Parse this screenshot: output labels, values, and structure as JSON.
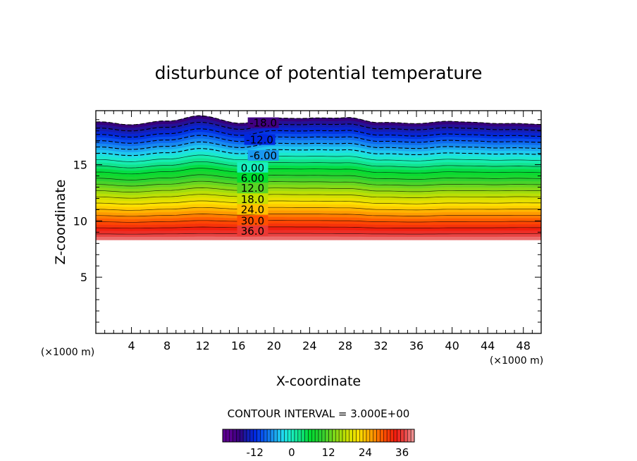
{
  "chart_data": {
    "type": "contour",
    "title": "disturbunce of potential temperature",
    "xlabel": "X-coordinate",
    "ylabel": "Z-coordinate",
    "x_unit": "(×1000 m)",
    "y_unit": "(×1000 m)",
    "xlim": [
      0,
      50
    ],
    "ylim": [
      0,
      19.8
    ],
    "x_ticks": [
      4,
      8,
      12,
      16,
      20,
      24,
      28,
      32,
      36,
      40,
      44,
      48
    ],
    "y_ticks": [
      5,
      10,
      15
    ],
    "contour_interval_label": "CONTOUR INTERVAL = 3.000E+00",
    "contour_interval": 3,
    "negative_contours": "dashed",
    "data_range": [
      -18,
      39
    ],
    "field_top_profile": {
      "x": [
        0,
        4,
        8,
        12,
        16,
        20,
        24,
        28,
        32,
        36,
        40,
        44,
        48,
        50
      ],
      "z": [
        18.6,
        18.2,
        18.6,
        19.3,
        18.9,
        19.5,
        19.4,
        19.2,
        18.5,
        18.3,
        18.6,
        18.7,
        18.9,
        18.9
      ]
    },
    "field_bottom_z": 8.3,
    "contour_labels": [
      {
        "text": "-18.0",
        "level": -18,
        "x": 18.8,
        "z": 18.7
      },
      {
        "text": "-12.0",
        "level": -12,
        "x": 18.4,
        "z": 17.2
      },
      {
        "text": "-6.00",
        "level": -6,
        "x": 18.8,
        "z": 15.8
      },
      {
        "text": "0.00",
        "level": 0,
        "x": 17.6,
        "z": 14.7
      },
      {
        "text": "6.00",
        "level": 6,
        "x": 17.6,
        "z": 13.8
      },
      {
        "text": "12.0",
        "level": 12,
        "x": 17.6,
        "z": 12.9
      },
      {
        "text": "18.0",
        "level": 18,
        "x": 17.6,
        "z": 11.9
      },
      {
        "text": "24.0",
        "level": 24,
        "x": 17.6,
        "z": 11.0
      },
      {
        "text": "30.0",
        "level": 30,
        "x": 17.6,
        "z": 10.0
      },
      {
        "text": "36.0",
        "level": 36,
        "x": 17.6,
        "z": 9.1
      }
    ],
    "colorbar_ticks": [
      "-12",
      "0",
      "12",
      "24",
      "36"
    ],
    "colorbar_tick_values": [
      -12,
      0,
      12,
      24,
      36
    ],
    "colorbar_range": [
      -22.5,
      40
    ],
    "color_stops": [
      {
        "v": -20,
        "c": "#5a0090"
      },
      {
        "v": -17,
        "c": "#34007a"
      },
      {
        "v": -15,
        "c": "#1a1aa8"
      },
      {
        "v": -12,
        "c": "#0028e0"
      },
      {
        "v": -9,
        "c": "#0a5cf0"
      },
      {
        "v": -6,
        "c": "#1a98f0"
      },
      {
        "v": -3,
        "c": "#20d8f0"
      },
      {
        "v": 0,
        "c": "#18f0c0"
      },
      {
        "v": 3,
        "c": "#10e080"
      },
      {
        "v": 6,
        "c": "#00dc30"
      },
      {
        "v": 10,
        "c": "#30d030"
      },
      {
        "v": 14,
        "c": "#80d818"
      },
      {
        "v": 18,
        "c": "#c8e000"
      },
      {
        "v": 22,
        "c": "#ffe000"
      },
      {
        "v": 26,
        "c": "#ffa000"
      },
      {
        "v": 30,
        "c": "#ff5000"
      },
      {
        "v": 34,
        "c": "#f01c10"
      },
      {
        "v": 37,
        "c": "#e84848"
      },
      {
        "v": 40,
        "c": "#f0a0a0"
      }
    ]
  }
}
